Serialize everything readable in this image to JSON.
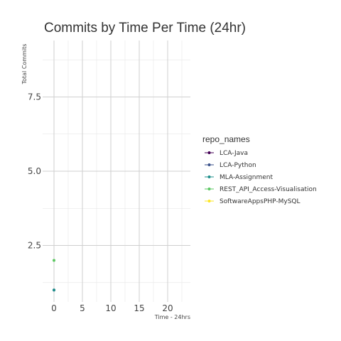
{
  "chart_data": {
    "type": "scatter",
    "title": "Commits by Time Per Time (24hr)",
    "xlabel": "Time - 24hrs",
    "ylabel": "Total Commits",
    "xlim": [
      -2,
      24
    ],
    "ylim": [
      0.6,
      9.4
    ],
    "xticks": [
      0,
      5,
      10,
      15,
      20
    ],
    "yticks": [
      2.5,
      5.0,
      7.5
    ],
    "ytick_labels": [
      "2.5",
      "5.0",
      "7.5"
    ],
    "grid": true,
    "legend_position": "right",
    "legend_title": "repo_names",
    "series": [
      {
        "name": "LCA-Java",
        "color": "#440154",
        "points": []
      },
      {
        "name": "LCA-Python",
        "color": "#3b528b",
        "points": [
          [
            0,
            1
          ]
        ]
      },
      {
        "name": "MLA-Assignment",
        "color": "#21908c",
        "points": [
          [
            0,
            1
          ]
        ]
      },
      {
        "name": "REST_API_Access-Visualisation",
        "color": "#5dc863",
        "points": [
          [
            0,
            2
          ]
        ]
      },
      {
        "name": "SoftwareAppsPHP-MySQL",
        "color": "#fde725",
        "points": []
      }
    ]
  }
}
